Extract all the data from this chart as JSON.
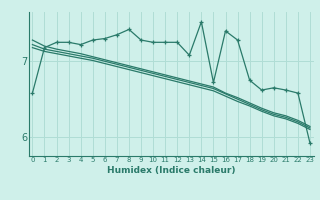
{
  "xlabel": "Humidex (Indice chaleur)",
  "background_color": "#cff0ea",
  "grid_color": "#b0ddd5",
  "line_color": "#2a7a6a",
  "x_ticks": [
    0,
    1,
    2,
    3,
    4,
    5,
    6,
    7,
    8,
    9,
    10,
    11,
    12,
    13,
    14,
    15,
    16,
    17,
    18,
    19,
    20,
    21,
    22,
    23
  ],
  "y_ticks": [
    6,
    7
  ],
  "ylim": [
    5.75,
    7.65
  ],
  "xlim": [
    -0.3,
    23.3
  ],
  "series1_x": [
    0,
    1,
    2,
    3,
    4,
    5,
    6,
    7,
    8,
    9,
    10,
    11,
    12,
    13,
    14,
    15,
    16,
    17,
    18,
    19,
    20,
    21,
    22,
    23
  ],
  "series1_y": [
    6.58,
    7.18,
    7.25,
    7.25,
    7.22,
    7.28,
    7.3,
    7.35,
    7.42,
    7.28,
    7.25,
    7.25,
    7.25,
    7.08,
    7.52,
    6.72,
    7.4,
    7.28,
    6.75,
    6.62,
    6.65,
    6.62,
    6.58,
    5.92
  ],
  "series2_x": [
    0,
    1,
    2,
    3,
    4,
    5,
    6,
    7,
    8,
    9,
    10,
    11,
    12,
    13,
    14,
    15,
    16,
    17,
    18,
    19,
    20,
    21,
    22,
    23
  ],
  "series2_y": [
    7.28,
    7.2,
    7.16,
    7.13,
    7.1,
    7.06,
    7.02,
    6.98,
    6.94,
    6.9,
    6.86,
    6.82,
    6.78,
    6.74,
    6.7,
    6.66,
    6.58,
    6.52,
    6.45,
    6.38,
    6.32,
    6.28,
    6.22,
    6.14
  ],
  "series3_x": [
    0,
    1,
    2,
    3,
    4,
    5,
    6,
    7,
    8,
    9,
    10,
    11,
    12,
    13,
    14,
    15,
    16,
    17,
    18,
    19,
    20,
    21,
    22,
    23
  ],
  "series3_y": [
    7.22,
    7.16,
    7.13,
    7.1,
    7.07,
    7.04,
    7.0,
    6.96,
    6.92,
    6.88,
    6.84,
    6.8,
    6.76,
    6.72,
    6.68,
    6.64,
    6.57,
    6.5,
    6.43,
    6.36,
    6.3,
    6.26,
    6.2,
    6.12
  ],
  "series4_x": [
    0,
    1,
    2,
    3,
    4,
    5,
    6,
    7,
    8,
    9,
    10,
    11,
    12,
    13,
    14,
    15,
    16,
    17,
    18,
    19,
    20,
    21,
    22,
    23
  ],
  "series4_y": [
    7.18,
    7.13,
    7.1,
    7.07,
    7.04,
    7.01,
    6.97,
    6.93,
    6.89,
    6.85,
    6.81,
    6.77,
    6.73,
    6.69,
    6.65,
    6.61,
    6.54,
    6.47,
    6.41,
    6.34,
    6.28,
    6.24,
    6.18,
    6.1
  ]
}
